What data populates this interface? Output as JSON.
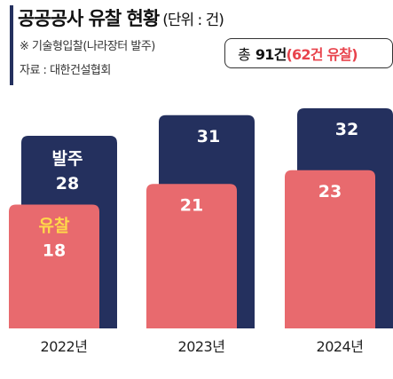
{
  "header": {
    "title": "공공공사 유찰 현황",
    "unit": "(단위 : 건)",
    "note": "※ 기술형입찰(나라장터 발주)",
    "source": "자료 : 대한건설협회"
  },
  "summary": {
    "label": "총",
    "total": "91건",
    "sub": "(62건 유찰)"
  },
  "colors": {
    "ordered": "#24305e",
    "failed": "#e86a6e",
    "label_white": "#ffffff",
    "label_yellow": "#ffd84a",
    "accent_red": "#e8434c"
  },
  "chart_data": {
    "type": "bar",
    "categories": [
      "2022년",
      "2023년",
      "2024년"
    ],
    "series": [
      {
        "name": "발주",
        "values": [
          28,
          31,
          32
        ]
      },
      {
        "name": "유찰",
        "values": [
          18,
          21,
          23
        ]
      }
    ],
    "ylim": [
      0,
      32
    ],
    "grid": false,
    "legend": "inline"
  }
}
